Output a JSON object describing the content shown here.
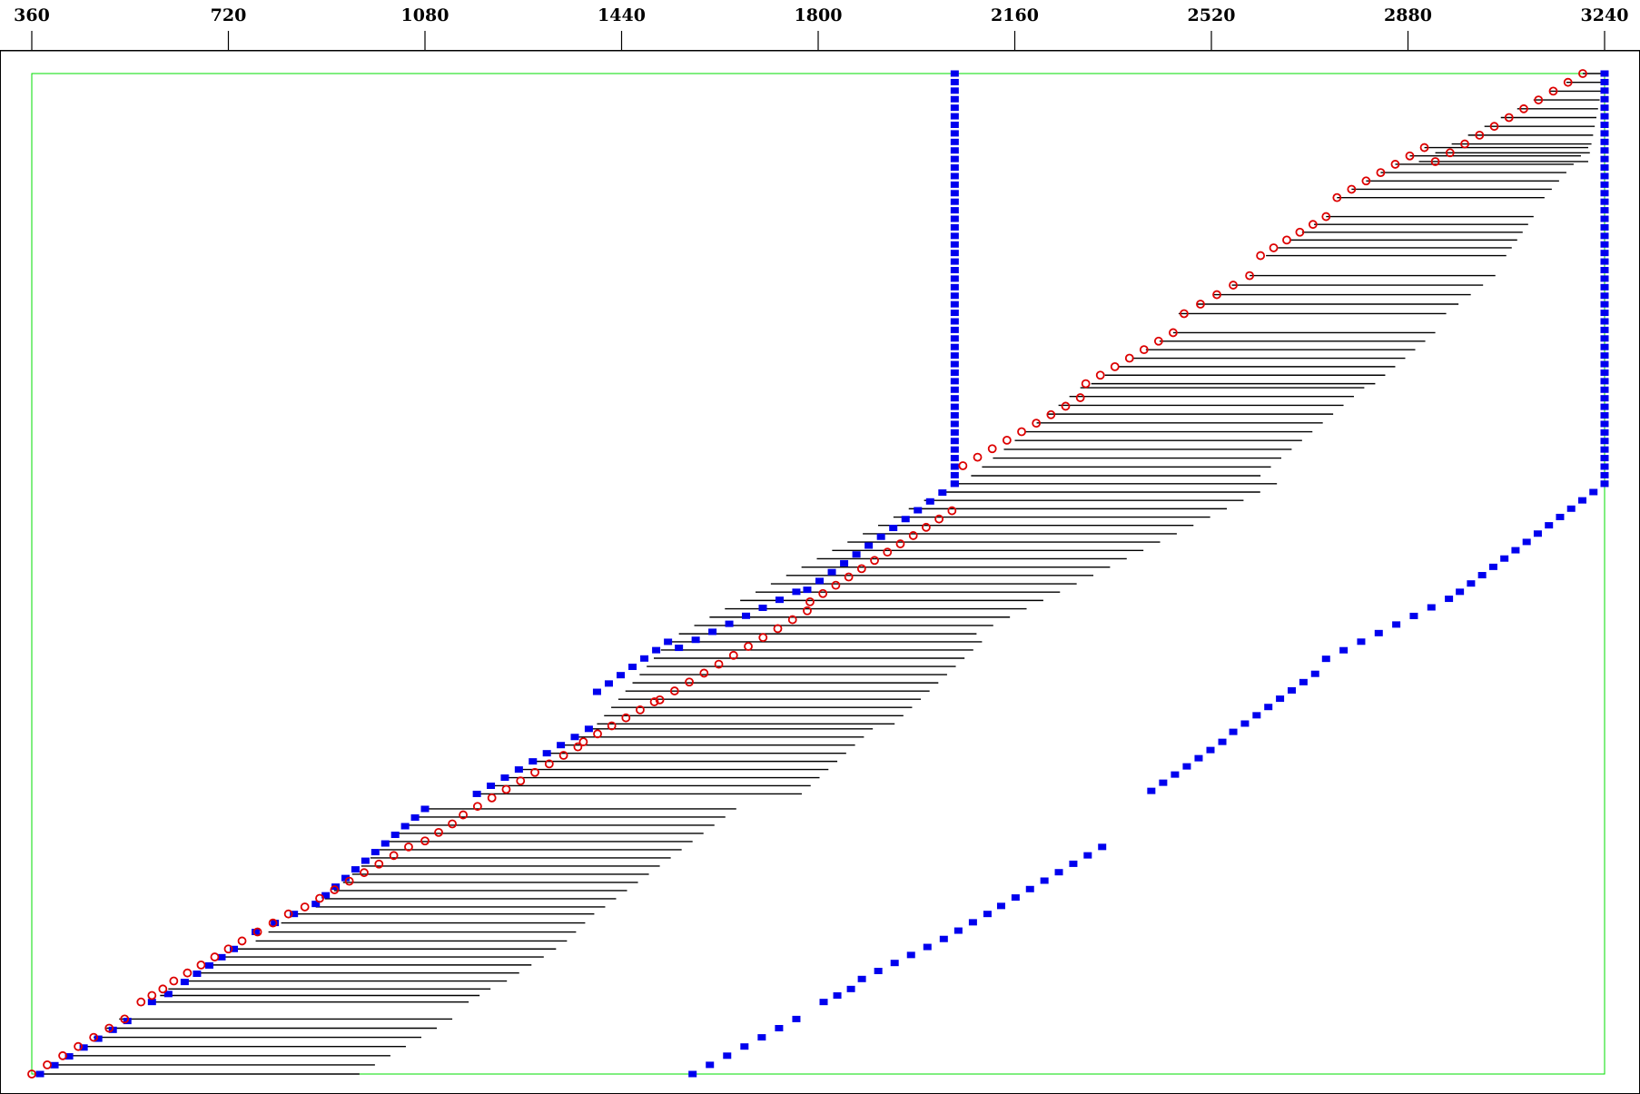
{
  "chart_data": {
    "type": "scatter",
    "title": "",
    "xlabel": "",
    "ylabel": "",
    "x_axis_position": "top",
    "xlim": [
      303,
      3261
    ],
    "x_ticks": [
      360,
      720,
      1080,
      1440,
      1800,
      2160,
      2520,
      2880,
      3240
    ],
    "x_tick_labels": [
      "360",
      "720",
      "1080",
      "1440",
      "1800",
      "2160",
      "2520",
      "2880",
      "3240"
    ],
    "ylim": [
      0,
      1
    ],
    "grid": false,
    "colors": {
      "frame": "#000000",
      "plot_boundary": "#00dd00",
      "red_markers": "#dd0000",
      "blue_markers": "#0000ee",
      "bars": "#000000"
    },
    "plot_boundary": {
      "x": [
        360,
        3240
      ],
      "y": [
        0,
        1
      ]
    },
    "series": [
      {
        "marker": "open-circle",
        "color": "#dd0000",
        "segments": [
          {
            "x0": 360,
            "x1": 530,
            "y0": 0.0,
            "y1": 0.055
          },
          {
            "x0": 560,
            "x1": 600,
            "y0": 0.072,
            "y1": 0.085
          },
          {
            "x0": 620,
            "x1": 720,
            "y0": 0.093,
            "y1": 0.125
          },
          {
            "x0": 745,
            "x1": 830,
            "y0": 0.133,
            "y1": 0.16
          },
          {
            "x0": 860,
            "x1": 1050,
            "y0": 0.167,
            "y1": 0.227
          },
          {
            "x0": 1080,
            "x1": 1130,
            "y0": 0.233,
            "y1": 0.25
          },
          {
            "x0": 1150,
            "x1": 1360,
            "y0": 0.259,
            "y1": 0.327
          },
          {
            "x0": 1370,
            "x1": 1500,
            "y0": 0.332,
            "y1": 0.372
          },
          {
            "x0": 1510,
            "x1": 1780,
            "y0": 0.374,
            "y1": 0.463
          },
          {
            "x0": 1785,
            "x1": 2045,
            "y0": 0.472,
            "y1": 0.563
          },
          {
            "x0": 2065,
            "x1": 2280,
            "y0": 0.608,
            "y1": 0.676
          },
          {
            "x0": 2290,
            "x1": 2450,
            "y0": 0.69,
            "y1": 0.741
          },
          {
            "x0": 2470,
            "x1": 2590,
            "y0": 0.76,
            "y1": 0.798
          },
          {
            "x0": 2610,
            "x1": 2730,
            "y0": 0.818,
            "y1": 0.857
          },
          {
            "x0": 2750,
            "x1": 2910,
            "y0": 0.876,
            "y1": 0.926
          },
          {
            "x0": 2930,
            "x1": 3200,
            "y0": 0.912,
            "y1": 1.0
          }
        ]
      },
      {
        "marker": "filled-square",
        "color": "#0000ee",
        "segments": [
          {
            "x0": 375,
            "x1": 535,
            "y0": 0.0,
            "y1": 0.053
          },
          {
            "x0": 580,
            "x1": 610,
            "y0": 0.072,
            "y1": 0.08
          },
          {
            "x0": 640,
            "x1": 730,
            "y0": 0.092,
            "y1": 0.125
          },
          {
            "x0": 770,
            "x1": 840,
            "y0": 0.142,
            "y1": 0.16
          },
          {
            "x0": 880,
            "x1": 1080,
            "y0": 0.17,
            "y1": 0.265
          },
          {
            "x0": 1175,
            "x1": 1380,
            "y0": 0.28,
            "y1": 0.345
          },
          {
            "x0": 1395,
            "x1": 1525,
            "y0": 0.382,
            "y1": 0.432
          },
          {
            "x0": 1545,
            "x1": 1760,
            "y0": 0.426,
            "y1": 0.482
          },
          {
            "x0": 1780,
            "x1": 2050,
            "y0": 0.484,
            "y1": 0.59
          },
          {
            "x0": 1570,
            "x1": 1760,
            "y0": 0.0,
            "y1": 0.055
          },
          {
            "x0": 1810,
            "x1": 1860,
            "y0": 0.072,
            "y1": 0.085
          },
          {
            "x0": 1880,
            "x1": 2000,
            "y0": 0.095,
            "y1": 0.127
          },
          {
            "x0": 2030,
            "x1": 2110,
            "y0": 0.135,
            "y1": 0.16
          },
          {
            "x0": 2135,
            "x1": 2320,
            "y0": 0.168,
            "y1": 0.227
          },
          {
            "x0": 2410,
            "x1": 2540,
            "y0": 0.283,
            "y1": 0.332
          },
          {
            "x0": 2560,
            "x1": 2710,
            "y0": 0.342,
            "y1": 0.4
          },
          {
            "x0": 2730,
            "x1": 2955,
            "y0": 0.415,
            "y1": 0.475
          },
          {
            "x0": 2975,
            "x1": 3240,
            "y0": 0.482,
            "y1": 0.59
          },
          {
            "x0": 2050,
            "x1": 2050,
            "y0": 0.59,
            "y1": 1.0
          },
          {
            "x0": 3240,
            "x1": 3240,
            "y0": 0.59,
            "y1": 1.0
          }
        ]
      }
    ],
    "bar_bands": [
      {
        "y0": 0.0,
        "y1": 0.055,
        "left_x0": 380,
        "left_x1": 520,
        "right_x0": 960,
        "right_x1": 1130
      },
      {
        "y0": 0.072,
        "y1": 0.085,
        "left_x0": 580,
        "left_x1": 610,
        "right_x0": 1160,
        "right_x1": 1200
      },
      {
        "y0": 0.093,
        "y1": 0.125,
        "left_x0": 640,
        "left_x1": 730,
        "right_x0": 1230,
        "right_x1": 1320
      },
      {
        "y0": 0.133,
        "y1": 0.16,
        "left_x0": 770,
        "left_x1": 840,
        "right_x0": 1340,
        "right_x1": 1390
      },
      {
        "y0": 0.167,
        "y1": 0.265,
        "left_x0": 880,
        "left_x1": 1080,
        "right_x0": 1410,
        "right_x1": 1650
      },
      {
        "y0": 0.28,
        "y1": 0.345,
        "left_x0": 1175,
        "left_x1": 1380,
        "right_x0": 1770,
        "right_x1": 1900
      },
      {
        "y0": 0.35,
        "y1": 0.432,
        "left_x0": 1395,
        "left_x1": 1525,
        "right_x0": 1940,
        "right_x1": 2100
      },
      {
        "y0": 0.44,
        "y1": 0.59,
        "left_x0": 1545,
        "left_x1": 2050,
        "right_x0": 2090,
        "right_x1": 2640
      },
      {
        "y0": 0.598,
        "y1": 0.686,
        "left_x0": 2080,
        "left_x1": 2280,
        "right_x0": 2610,
        "right_x1": 2800
      },
      {
        "y0": 0.69,
        "y1": 0.741,
        "left_x0": 2300,
        "left_x1": 2450,
        "right_x0": 2820,
        "right_x1": 2930
      },
      {
        "y0": 0.76,
        "y1": 0.798,
        "left_x0": 2460,
        "left_x1": 2590,
        "right_x0": 2950,
        "right_x1": 3040
      },
      {
        "y0": 0.818,
        "y1": 0.857,
        "left_x0": 2620,
        "left_x1": 2730,
        "right_x0": 3060,
        "right_x1": 3110
      },
      {
        "y0": 0.876,
        "y1": 0.926,
        "left_x0": 2750,
        "left_x1": 2910,
        "right_x0": 3130,
        "right_x1": 3210
      },
      {
        "y0": 0.912,
        "y1": 1.0,
        "left_x0": 2900,
        "left_x1": 3200,
        "right_x0": 3210,
        "right_x1": 3240
      }
    ]
  }
}
